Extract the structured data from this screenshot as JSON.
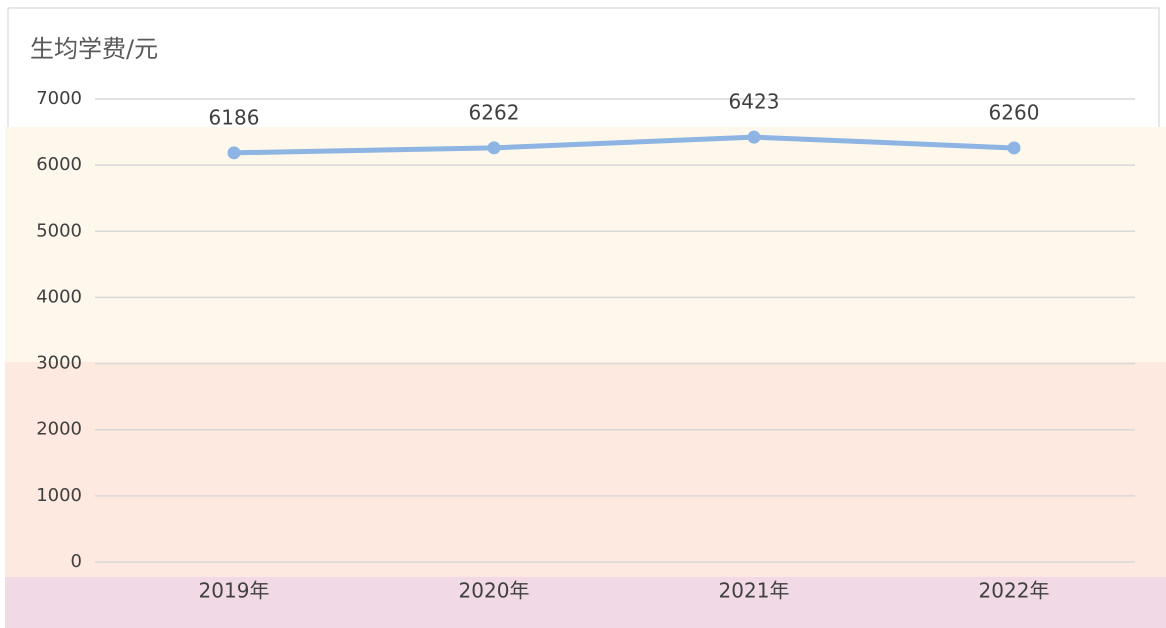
{
  "chart_data": {
    "type": "line",
    "title": "生均学费/元",
    "categories": [
      "2019年",
      "2020年",
      "2021年",
      "2022年"
    ],
    "series": [
      {
        "name": "生均学费",
        "color": "#8db4e2",
        "values": [
          6186,
          6262,
          6423,
          6260
        ]
      }
    ],
    "ylim": [
      0,
      7000
    ],
    "yticks": [
      0,
      1000,
      2000,
      3000,
      4000,
      5000,
      6000,
      7000
    ],
    "grid": true
  }
}
